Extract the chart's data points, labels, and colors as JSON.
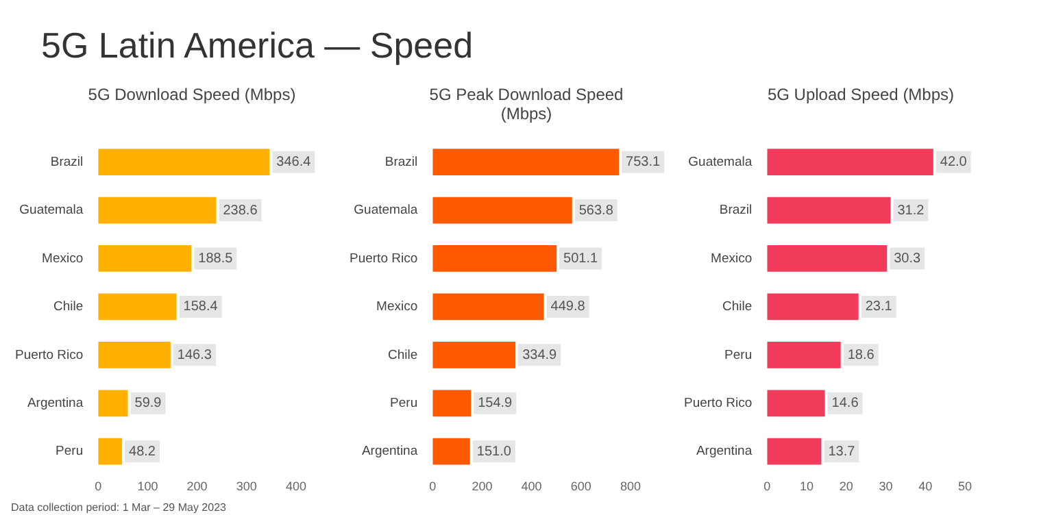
{
  "chart_data": [
    {
      "type": "other",
      "title": "5G Latin America — Speed"
    },
    {
      "type": "bar",
      "orientation": "horizontal",
      "title": "5G Download Speed (Mbps)",
      "categories": [
        "Brazil",
        "Guatemala",
        "Mexico",
        "Chile",
        "Puerto Rico",
        "Argentina",
        "Peru"
      ],
      "values": [
        346.4,
        238.6,
        188.5,
        158.4,
        146.3,
        59.9,
        48.2
      ],
      "value_labels": [
        "346.4",
        "238.6",
        "188.5",
        "158.4",
        "146.3",
        "59.9",
        "48.2"
      ],
      "color": "#ffb000",
      "xlim": [
        0,
        400
      ],
      "xticks": [
        0,
        100,
        200,
        300,
        400
      ],
      "annotations": [
        "Data collection period: 1 Mar – 29 May 2023"
      ]
    },
    {
      "type": "bar",
      "orientation": "horizontal",
      "title": "5G Peak Download Speed (Mbps)",
      "categories": [
        "Brazil",
        "Guatemala",
        "Puerto Rico",
        "Mexico",
        "Chile",
        "Peru",
        "Argentina"
      ],
      "values": [
        753.1,
        563.8,
        501.1,
        449.8,
        334.9,
        154.9,
        151.0
      ],
      "value_labels": [
        "753.1",
        "563.8",
        "501.1",
        "449.8",
        "334.9",
        "154.9",
        "151.0"
      ],
      "color": "#ff5a00",
      "xlim": [
        0,
        800
      ],
      "xticks": [
        0,
        200,
        400,
        600,
        800
      ]
    },
    {
      "type": "bar",
      "orientation": "horizontal",
      "title": "5G Upload Speed (Mbps)",
      "categories": [
        "Guatemala",
        "Brazil",
        "Mexico",
        "Chile",
        "Peru",
        "Puerto Rico",
        "Argentina"
      ],
      "values": [
        42.0,
        31.2,
        30.3,
        23.1,
        18.6,
        14.6,
        13.7
      ],
      "value_labels": [
        "42.0",
        "31.2",
        "30.3",
        "23.1",
        "18.6",
        "14.6",
        "13.7"
      ],
      "color": "#f03c5a",
      "xlim": [
        0,
        50
      ],
      "xticks": [
        0,
        10,
        20,
        30,
        40,
        50
      ]
    }
  ]
}
